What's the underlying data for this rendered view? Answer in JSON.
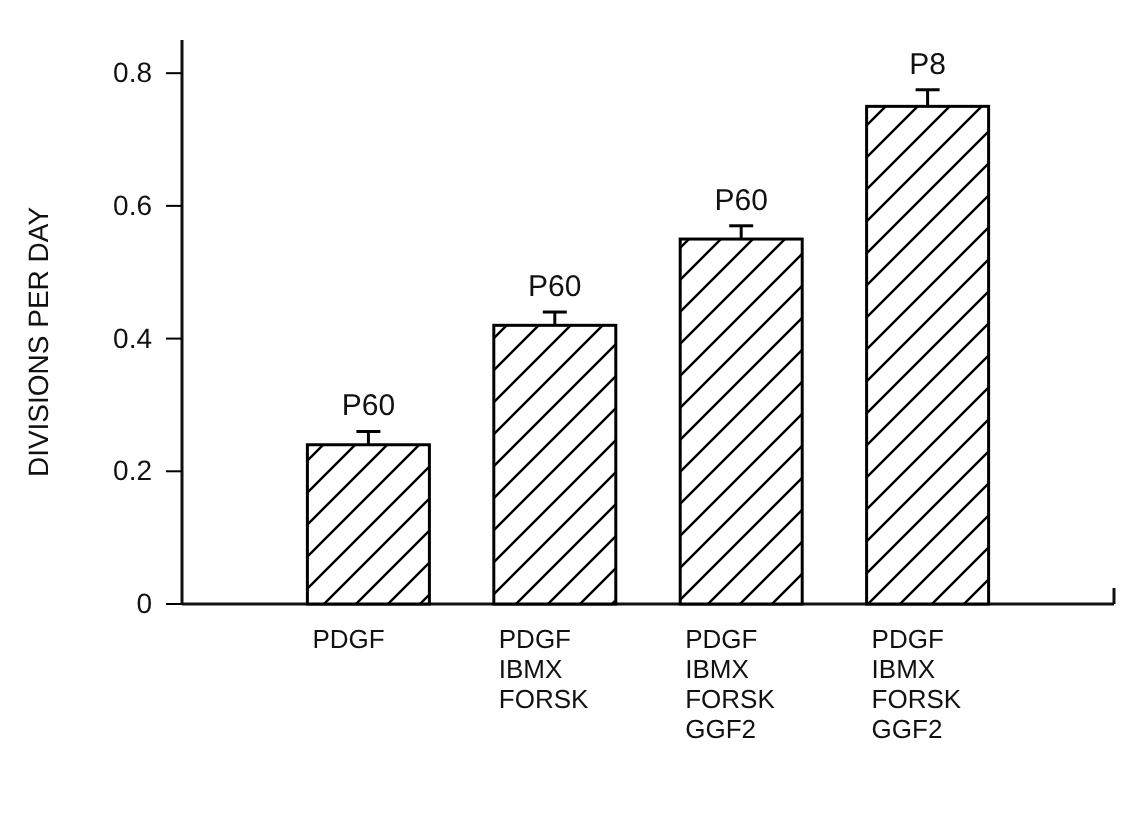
{
  "chart_data": {
    "type": "bar",
    "ylabel": "DIVISIONS PER DAY",
    "categories": [
      "PDGF",
      "PDGF\nIBMX\nFORSK",
      "PDGF\nIBMX\nFORSK\nGGF2",
      "PDGF\nIBMX\nFORSK\nGGF2"
    ],
    "values": [
      0.24,
      0.42,
      0.55,
      0.75
    ],
    "errors": [
      0.02,
      0.02,
      0.02,
      0.025
    ],
    "color": "#000000",
    "ylim": [
      0,
      0.85
    ],
    "yticks": [
      {
        "value": 0,
        "label": "0"
      },
      0.2,
      0.4,
      0.6,
      0.8
    ],
    "annotations": [
      "P60",
      "P60",
      "P60",
      "P8"
    ],
    "grid": false
  }
}
